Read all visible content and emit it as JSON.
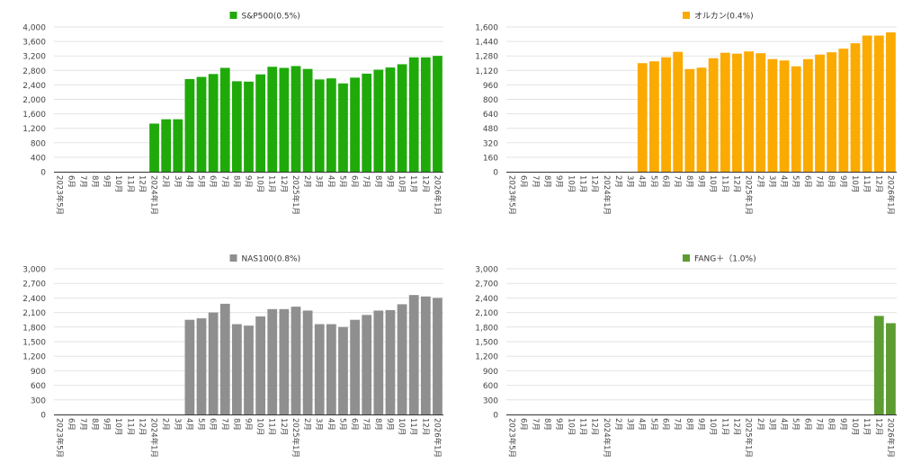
{
  "chart_data": [
    {
      "type": "bar",
      "legend": "S&P500(0.5%)",
      "legend_position": "top",
      "color": "#1faa0a",
      "ylim": [
        0,
        4000
      ],
      "yticks": [
        0,
        400,
        800,
        1200,
        1600,
        2000,
        2400,
        2800,
        3200,
        3600,
        4000
      ],
      "ytick_labels": [
        "0",
        "400",
        "800",
        "1,200",
        "1,600",
        "2,000",
        "2,400",
        "2,800",
        "3,200",
        "3,600",
        "4,000"
      ],
      "grid": true,
      "categories": [
        "2023年5月",
        "6月",
        "7月",
        "8月",
        "9月",
        "10月",
        "11月",
        "12月",
        "2024年1月",
        "2月",
        "3月",
        "4月",
        "5月",
        "6月",
        "7月",
        "8月",
        "9月",
        "10月",
        "11月",
        "12月",
        "2025年1月",
        "2月",
        "3月",
        "4月",
        "5月",
        "6月",
        "7月",
        "8月",
        "9月",
        "10月",
        "11月",
        "12月",
        "2026年1月"
      ],
      "values": [
        null,
        null,
        null,
        null,
        null,
        null,
        null,
        null,
        1330,
        1450,
        1450,
        2560,
        2620,
        2700,
        2870,
        2500,
        2490,
        2690,
        2900,
        2870,
        2920,
        2840,
        2550,
        2580,
        2440,
        2600,
        2710,
        2820,
        2880,
        2970,
        3160,
        3160,
        3200
      ]
    },
    {
      "type": "bar",
      "legend": "オルカン(0.4%)",
      "legend_position": "top",
      "color": "#fbaa00",
      "ylim": [
        0,
        1600
      ],
      "yticks": [
        0,
        160,
        320,
        480,
        640,
        800,
        960,
        1120,
        1280,
        1440,
        1600
      ],
      "ytick_labels": [
        "0",
        "160",
        "320",
        "480",
        "640",
        "800",
        "960",
        "1,120",
        "1,280",
        "1,440",
        "1,600"
      ],
      "grid": true,
      "categories": [
        "2023年5月",
        "6月",
        "7月",
        "8月",
        "9月",
        "10月",
        "11月",
        "12月",
        "2024年1月",
        "2月",
        "3月",
        "4月",
        "5月",
        "6月",
        "7月",
        "8月",
        "9月",
        "10月",
        "11月",
        "12月",
        "2025年1月",
        "2月",
        "3月",
        "4月",
        "5月",
        "6月",
        "7月",
        "8月",
        "9月",
        "10月",
        "11月",
        "12月",
        "2026年1月"
      ],
      "values": [
        null,
        null,
        null,
        null,
        null,
        null,
        null,
        null,
        null,
        null,
        null,
        1200,
        1220,
        1265,
        1325,
        1135,
        1150,
        1255,
        1315,
        1305,
        1330,
        1310,
        1245,
        1230,
        1165,
        1245,
        1295,
        1320,
        1360,
        1420,
        1505,
        1505,
        1540
      ]
    },
    {
      "type": "bar",
      "legend": "NAS100(0.8%)",
      "legend_position": "top",
      "color": "#8f8f8f",
      "ylim": [
        0,
        3000
      ],
      "yticks": [
        0,
        300,
        600,
        900,
        1200,
        1500,
        1800,
        2100,
        2400,
        2700,
        3000
      ],
      "ytick_labels": [
        "0",
        "300",
        "600",
        "900",
        "1,200",
        "1,500",
        "1,800",
        "2,100",
        "2,400",
        "2,700",
        "3,000"
      ],
      "grid": true,
      "categories": [
        "2023年5月",
        "6月",
        "7月",
        "8月",
        "9月",
        "10月",
        "11月",
        "12月",
        "2024年1月",
        "2月",
        "3月",
        "4月",
        "5月",
        "6月",
        "7月",
        "8月",
        "9月",
        "10月",
        "11月",
        "12月",
        "2025年1月",
        "2月",
        "3月",
        "4月",
        "5月",
        "6月",
        "7月",
        "8月",
        "9月",
        "10月",
        "11月",
        "12月",
        "2026年1月"
      ],
      "values": [
        null,
        null,
        null,
        null,
        null,
        null,
        null,
        null,
        null,
        null,
        null,
        1950,
        1980,
        2100,
        2280,
        1860,
        1830,
        2020,
        2170,
        2170,
        2220,
        2140,
        1860,
        1860,
        1800,
        1950,
        2050,
        2140,
        2150,
        2270,
        2460,
        2430,
        2400
      ]
    },
    {
      "type": "bar",
      "legend": "FANG＋（1.0%)",
      "legend_position": "top",
      "color": "#5d9c31",
      "ylim": [
        0,
        3000
      ],
      "yticks": [
        0,
        300,
        600,
        900,
        1200,
        1500,
        1800,
        2100,
        2400,
        2700,
        3000
      ],
      "ytick_labels": [
        "0",
        "300",
        "600",
        "900",
        "1,200",
        "1,500",
        "1,800",
        "2,100",
        "2,400",
        "2,700",
        "3,000"
      ],
      "grid": true,
      "categories": [
        "2023年5月",
        "6月",
        "7月",
        "8月",
        "9月",
        "10月",
        "11月",
        "12月",
        "2024年1月",
        "2月",
        "3月",
        "4月",
        "5月",
        "6月",
        "7月",
        "8月",
        "9月",
        "10月",
        "11月",
        "12月",
        "2025年1月",
        "2月",
        "3月",
        "4月",
        "5月",
        "6月",
        "7月",
        "8月",
        "9月",
        "10月",
        "11月",
        "12月",
        "2026年1月"
      ],
      "values": [
        null,
        null,
        null,
        null,
        null,
        null,
        null,
        null,
        null,
        null,
        null,
        null,
        null,
        null,
        null,
        null,
        null,
        null,
        null,
        null,
        null,
        null,
        null,
        null,
        null,
        null,
        null,
        null,
        null,
        null,
        null,
        2030,
        1880
      ]
    }
  ]
}
